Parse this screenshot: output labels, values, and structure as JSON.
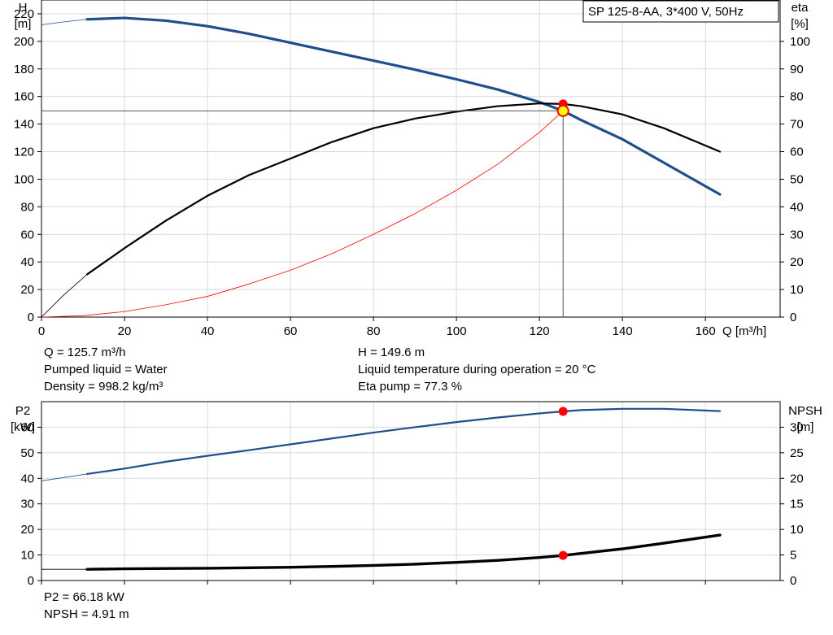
{
  "pump_label": "SP 125-8-AA, 3*400 V, 50Hz",
  "colors": {
    "head_curve": "#1f4e8c",
    "efficiency_curve": "#000000",
    "system_curve": "#ff0000",
    "marker": "#ff0000",
    "marker_highlight": "#ffff00",
    "grid": "#d9d9d9"
  },
  "upper_info": {
    "q": "Q = 125.7 m³/h",
    "liquid": "Pumped liquid = Water",
    "density": "Density = 998.2 kg/m³",
    "h": "H = 149.6 m",
    "temperature": "Liquid temperature during operation = 20 °C",
    "eta": "Eta pump = 77.3 %"
  },
  "lower_info": {
    "p2": "P2 = 66.18 kW",
    "npsh": "NPSH = 4.91 m"
  },
  "chart_data": [
    {
      "type": "line",
      "xlabel": "Q [m³/h]",
      "ylabel": [
        "H",
        "[m]"
      ],
      "y2label": [
        "eta",
        "[%]"
      ],
      "xlim": [
        0,
        178
      ],
      "ylim": [
        0,
        230
      ],
      "y2lim": [
        0,
        115
      ],
      "x_ticks": [
        0,
        20,
        40,
        60,
        80,
        100,
        120,
        140,
        160
      ],
      "y_ticks": [
        0,
        20,
        40,
        60,
        80,
        100,
        120,
        140,
        160,
        180,
        200,
        220
      ],
      "y2_ticks": [
        0,
        10,
        20,
        30,
        40,
        50,
        60,
        70,
        80,
        90,
        100
      ],
      "grid": true,
      "series": [
        {
          "axis": "left",
          "style": "head",
          "x": [
            0,
            5,
            11,
            20,
            30,
            40,
            50,
            60,
            70,
            80,
            90,
            100,
            110,
            120,
            125.7,
            130,
            140,
            150,
            163.5
          ],
          "y": [
            212,
            214,
            216,
            217,
            215,
            211,
            205.5,
            199,
            192.5,
            186,
            179.5,
            172.5,
            165,
            156,
            149.6,
            143,
            129,
            112,
            89
          ]
        },
        {
          "axis": "right",
          "style": "efficiency",
          "x": [
            0,
            5,
            11,
            20,
            30,
            40,
            50,
            60,
            70,
            80,
            90,
            100,
            110,
            120,
            125.7,
            130,
            140,
            150,
            163.5
          ],
          "y": [
            0,
            7.5,
            15.5,
            25,
            35,
            44,
            51.5,
            57.5,
            63.5,
            68.5,
            72,
            74.5,
            76.5,
            77.5,
            77.3,
            76.5,
            73.5,
            68.5,
            60
          ]
        },
        {
          "axis": "left",
          "style": "system",
          "x": [
            0,
            10,
            20,
            30,
            40,
            50,
            60,
            70,
            80,
            90,
            100,
            110,
            120,
            125.7
          ],
          "y": [
            0,
            1,
            4,
            9,
            15,
            24,
            34,
            46,
            60,
            75,
            92,
            111,
            134,
            149.6
          ]
        }
      ],
      "operating_point": {
        "q": 125.7,
        "h": 149.6,
        "eta": 77.3
      }
    },
    {
      "type": "line",
      "ylabel": [
        "P2",
        "[kW]"
      ],
      "y2label": [
        "NPSH",
        "[m]"
      ],
      "xlim": [
        0,
        178
      ],
      "ylim": [
        0,
        70
      ],
      "y2lim": [
        0,
        35
      ],
      "x_ticks": [
        0,
        20,
        40,
        60,
        80,
        100,
        120,
        140,
        160
      ],
      "y_ticks": [
        0,
        10,
        20,
        30,
        40,
        50,
        60
      ],
      "y2_ticks": [
        0,
        5,
        10,
        15,
        20,
        25,
        30
      ],
      "grid": true,
      "series": [
        {
          "axis": "left",
          "style": "power",
          "x": [
            0,
            11,
            20,
            30,
            40,
            50,
            60,
            70,
            80,
            90,
            100,
            110,
            120,
            125.7,
            130,
            140,
            150,
            163.5
          ],
          "y": [
            39,
            41.7,
            43.8,
            46.5,
            48.8,
            51,
            53.3,
            55.6,
            57.9,
            60,
            62,
            63.8,
            65.4,
            66.18,
            66.7,
            67.2,
            67.2,
            66.3
          ]
        },
        {
          "axis": "right",
          "style": "npsh",
          "x": [
            0,
            11,
            20,
            30,
            40,
            50,
            60,
            70,
            80,
            90,
            100,
            110,
            120,
            125.7,
            130,
            140,
            150,
            163.5
          ],
          "y": [
            2.2,
            2.2,
            2.3,
            2.35,
            2.4,
            2.5,
            2.6,
            2.75,
            2.95,
            3.2,
            3.55,
            3.95,
            4.5,
            4.91,
            5.3,
            6.2,
            7.3,
            8.9
          ]
        }
      ],
      "operating_points": [
        {
          "q": 125.7,
          "p2": 66.18
        },
        {
          "q": 125.7,
          "npsh": 4.91
        }
      ]
    }
  ]
}
